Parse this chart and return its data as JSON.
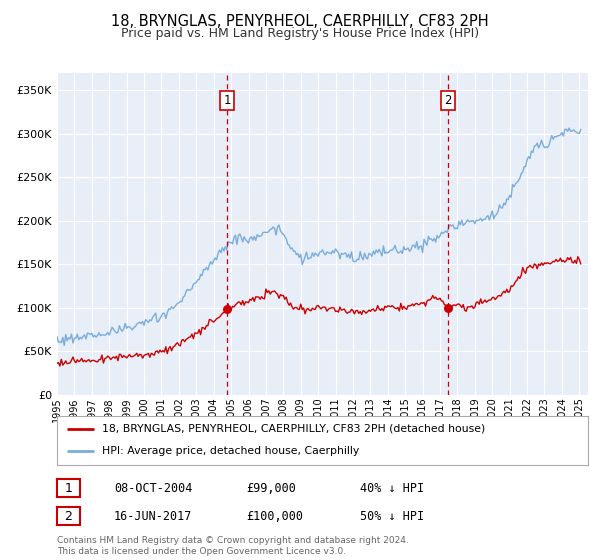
{
  "title": "18, BRYNGLAS, PENYRHEOL, CAERPHILLY, CF83 2PH",
  "subtitle": "Price paid vs. HM Land Registry's House Price Index (HPI)",
  "title_fontsize": 10.5,
  "subtitle_fontsize": 9,
  "background_color": "#ffffff",
  "plot_bg_color": "#e8eef8",
  "grid_color": "#ffffff",
  "ylabel_ticks": [
    "£0",
    "£50K",
    "£100K",
    "£150K",
    "£200K",
    "£250K",
    "£300K",
    "£350K"
  ],
  "ytick_values": [
    0,
    50000,
    100000,
    150000,
    200000,
    250000,
    300000,
    350000
  ],
  "ylim": [
    0,
    370000
  ],
  "xlim_start": 1995.0,
  "xlim_end": 2025.5,
  "sale1_x": 2004.77,
  "sale1_y": 99000,
  "sale1_label": "1",
  "sale1_date": "08-OCT-2004",
  "sale1_price": "£99,000",
  "sale1_hpi": "40% ↓ HPI",
  "sale2_x": 2017.46,
  "sale2_y": 100000,
  "sale2_label": "2",
  "sale2_date": "16-JUN-2017",
  "sale2_price": "£100,000",
  "sale2_hpi": "50% ↓ HPI",
  "legend_line1": "18, BRYNGLAS, PENYRHEOL, CAERPHILLY, CF83 2PH (detached house)",
  "legend_line2": "HPI: Average price, detached house, Caerphilly",
  "property_color": "#cc0000",
  "hpi_color": "#7aaddc",
  "footer": "Contains HM Land Registry data © Crown copyright and database right 2024.\nThis data is licensed under the Open Government Licence v3.0.",
  "xtick_years": [
    1995,
    1996,
    1997,
    1998,
    1999,
    2000,
    2001,
    2002,
    2003,
    2004,
    2005,
    2006,
    2007,
    2008,
    2009,
    2010,
    2011,
    2012,
    2013,
    2014,
    2015,
    2016,
    2017,
    2018,
    2019,
    2020,
    2021,
    2022,
    2023,
    2024,
    2025
  ]
}
